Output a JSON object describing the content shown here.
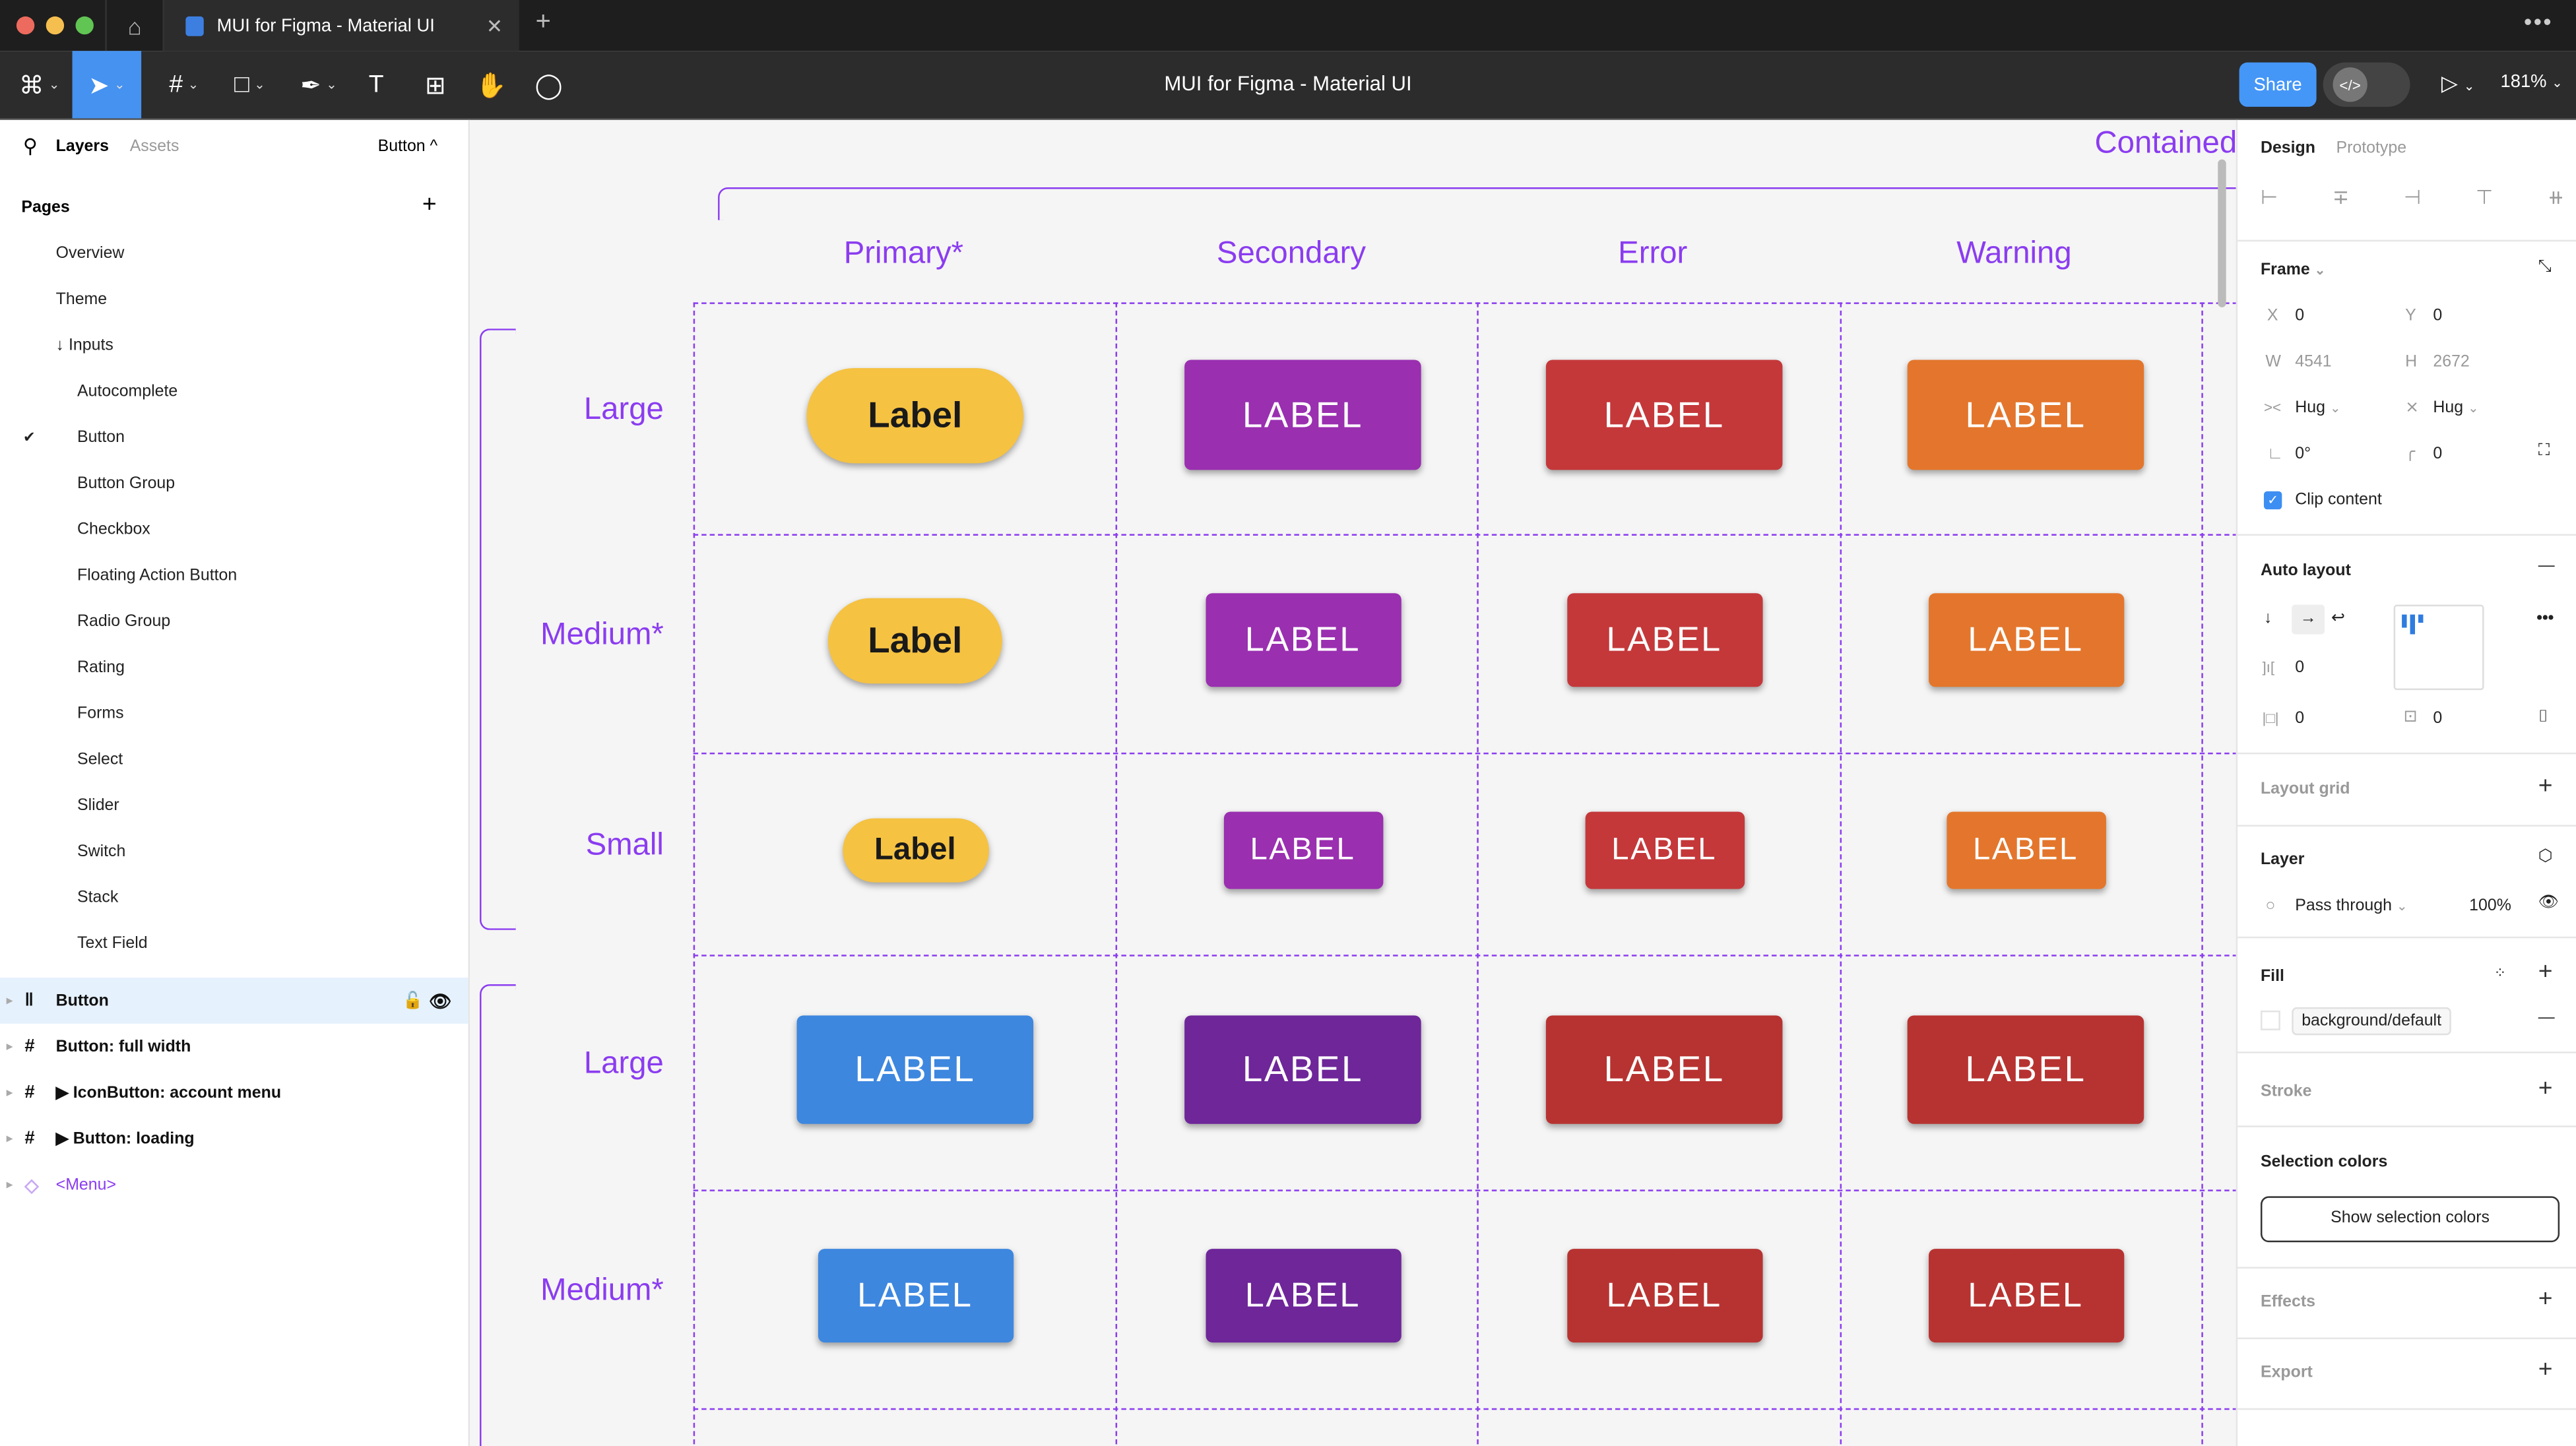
{
  "window": {
    "tab_title": "MUI for Figma - Material UI",
    "doc_title": "MUI for Figma - Material UI"
  },
  "toolbar": {
    "share": "Share",
    "zoom": "181%",
    "devmode_icon": "</>"
  },
  "left_panel": {
    "tabs": [
      "Layers",
      "Assets"
    ],
    "current_page": "Button ^",
    "pages_title": "Pages",
    "pages": [
      {
        "label": "Overview",
        "indent": 0
      },
      {
        "label": "Theme",
        "indent": 0
      },
      {
        "label": "↓ Inputs",
        "indent": 0
      },
      {
        "label": "Autocomplete",
        "indent": 1
      },
      {
        "label": "Button",
        "indent": 1,
        "selected": true
      },
      {
        "label": "Button Group",
        "indent": 1
      },
      {
        "label": "Checkbox",
        "indent": 1
      },
      {
        "label": "Floating Action Button",
        "indent": 1
      },
      {
        "label": "Radio Group",
        "indent": 1
      },
      {
        "label": "Rating",
        "indent": 1
      },
      {
        "label": "Forms",
        "indent": 1
      },
      {
        "label": "Select",
        "indent": 1
      },
      {
        "label": "Slider",
        "indent": 1
      },
      {
        "label": "Switch",
        "indent": 1
      },
      {
        "label": "Stack",
        "indent": 1
      },
      {
        "label": "Text Field",
        "indent": 1
      }
    ],
    "layers": [
      {
        "label": "Button",
        "icon": "autolayout-icon",
        "selected": true
      },
      {
        "label": "Button: full width",
        "icon": "frame-icon"
      },
      {
        "label": "▶ IconButton: account menu",
        "icon": "frame-icon"
      },
      {
        "label": "▶ Button: loading",
        "icon": "frame-icon"
      },
      {
        "label": "<Menu>",
        "icon": "component-instance-icon",
        "color": "#8b3cf0"
      }
    ]
  },
  "canvas": {
    "section_title": "Contained",
    "columns": [
      "Primary*",
      "Secondary",
      "Error",
      "Warning"
    ],
    "rows": [
      {
        "label": "Large",
        "buttons": [
          {
            "text": "Label",
            "color": "#f5c242",
            "style": "pill"
          },
          {
            "text": "LABEL",
            "color": "#9a2fb0"
          },
          {
            "text": "LABEL",
            "color": "#c4383a"
          },
          {
            "text": "LABEL",
            "color": "#e3762c"
          }
        ]
      },
      {
        "label": "Medium*",
        "buttons": [
          {
            "text": "Label",
            "color": "#f5c242",
            "style": "pill"
          },
          {
            "text": "LABEL",
            "color": "#9a2fb0"
          },
          {
            "text": "LABEL",
            "color": "#c4383a"
          },
          {
            "text": "LABEL",
            "color": "#e3762c"
          }
        ]
      },
      {
        "label": "Small",
        "buttons": [
          {
            "text": "Label",
            "color": "#f5c242",
            "style": "pill"
          },
          {
            "text": "LABEL",
            "color": "#9a2fb0"
          },
          {
            "text": "LABEL",
            "color": "#c4383a"
          },
          {
            "text": "LABEL",
            "color": "#e3762c"
          }
        ]
      },
      {
        "label": "Large",
        "buttons": [
          {
            "text": "LABEL",
            "color": "#3d87df"
          },
          {
            "text": "LABEL",
            "color": "#6e2699"
          },
          {
            "text": "LABEL",
            "color": "#b73331"
          },
          {
            "text": "LABEL",
            "color": "#b73331"
          }
        ]
      },
      {
        "label": "Medium*",
        "buttons": [
          {
            "text": "LABEL",
            "color": "#3d87df"
          },
          {
            "text": "LABEL",
            "color": "#6e2699"
          },
          {
            "text": "LABEL",
            "color": "#b73331"
          },
          {
            "text": "LABEL",
            "color": "#b73331"
          }
        ]
      }
    ]
  },
  "right_panel": {
    "tabs": [
      "Design",
      "Prototype"
    ],
    "frame": {
      "title": "Frame",
      "x_label": "X",
      "x": "0",
      "y_label": "Y",
      "y": "0",
      "w_label": "W",
      "w": "4541",
      "h_label": "H",
      "h": "2672",
      "width_mode": "Hug",
      "height_mode": "Hug",
      "rotation": "0°",
      "radius": "0",
      "clip_content": "Clip content",
      "clip_checked": true
    },
    "auto_layout": {
      "title": "Auto layout",
      "gap": "0",
      "padding_h": "0",
      "padding_v": "0"
    },
    "layout_grid": "Layout grid",
    "layer": {
      "title": "Layer",
      "blend": "Pass through",
      "opacity": "100%"
    },
    "fill": {
      "title": "Fill",
      "style": "background/default"
    },
    "stroke": "Stroke",
    "selection_colors": {
      "title": "Selection colors",
      "button": "Show selection colors"
    },
    "effects": "Effects",
    "export": "Export"
  }
}
